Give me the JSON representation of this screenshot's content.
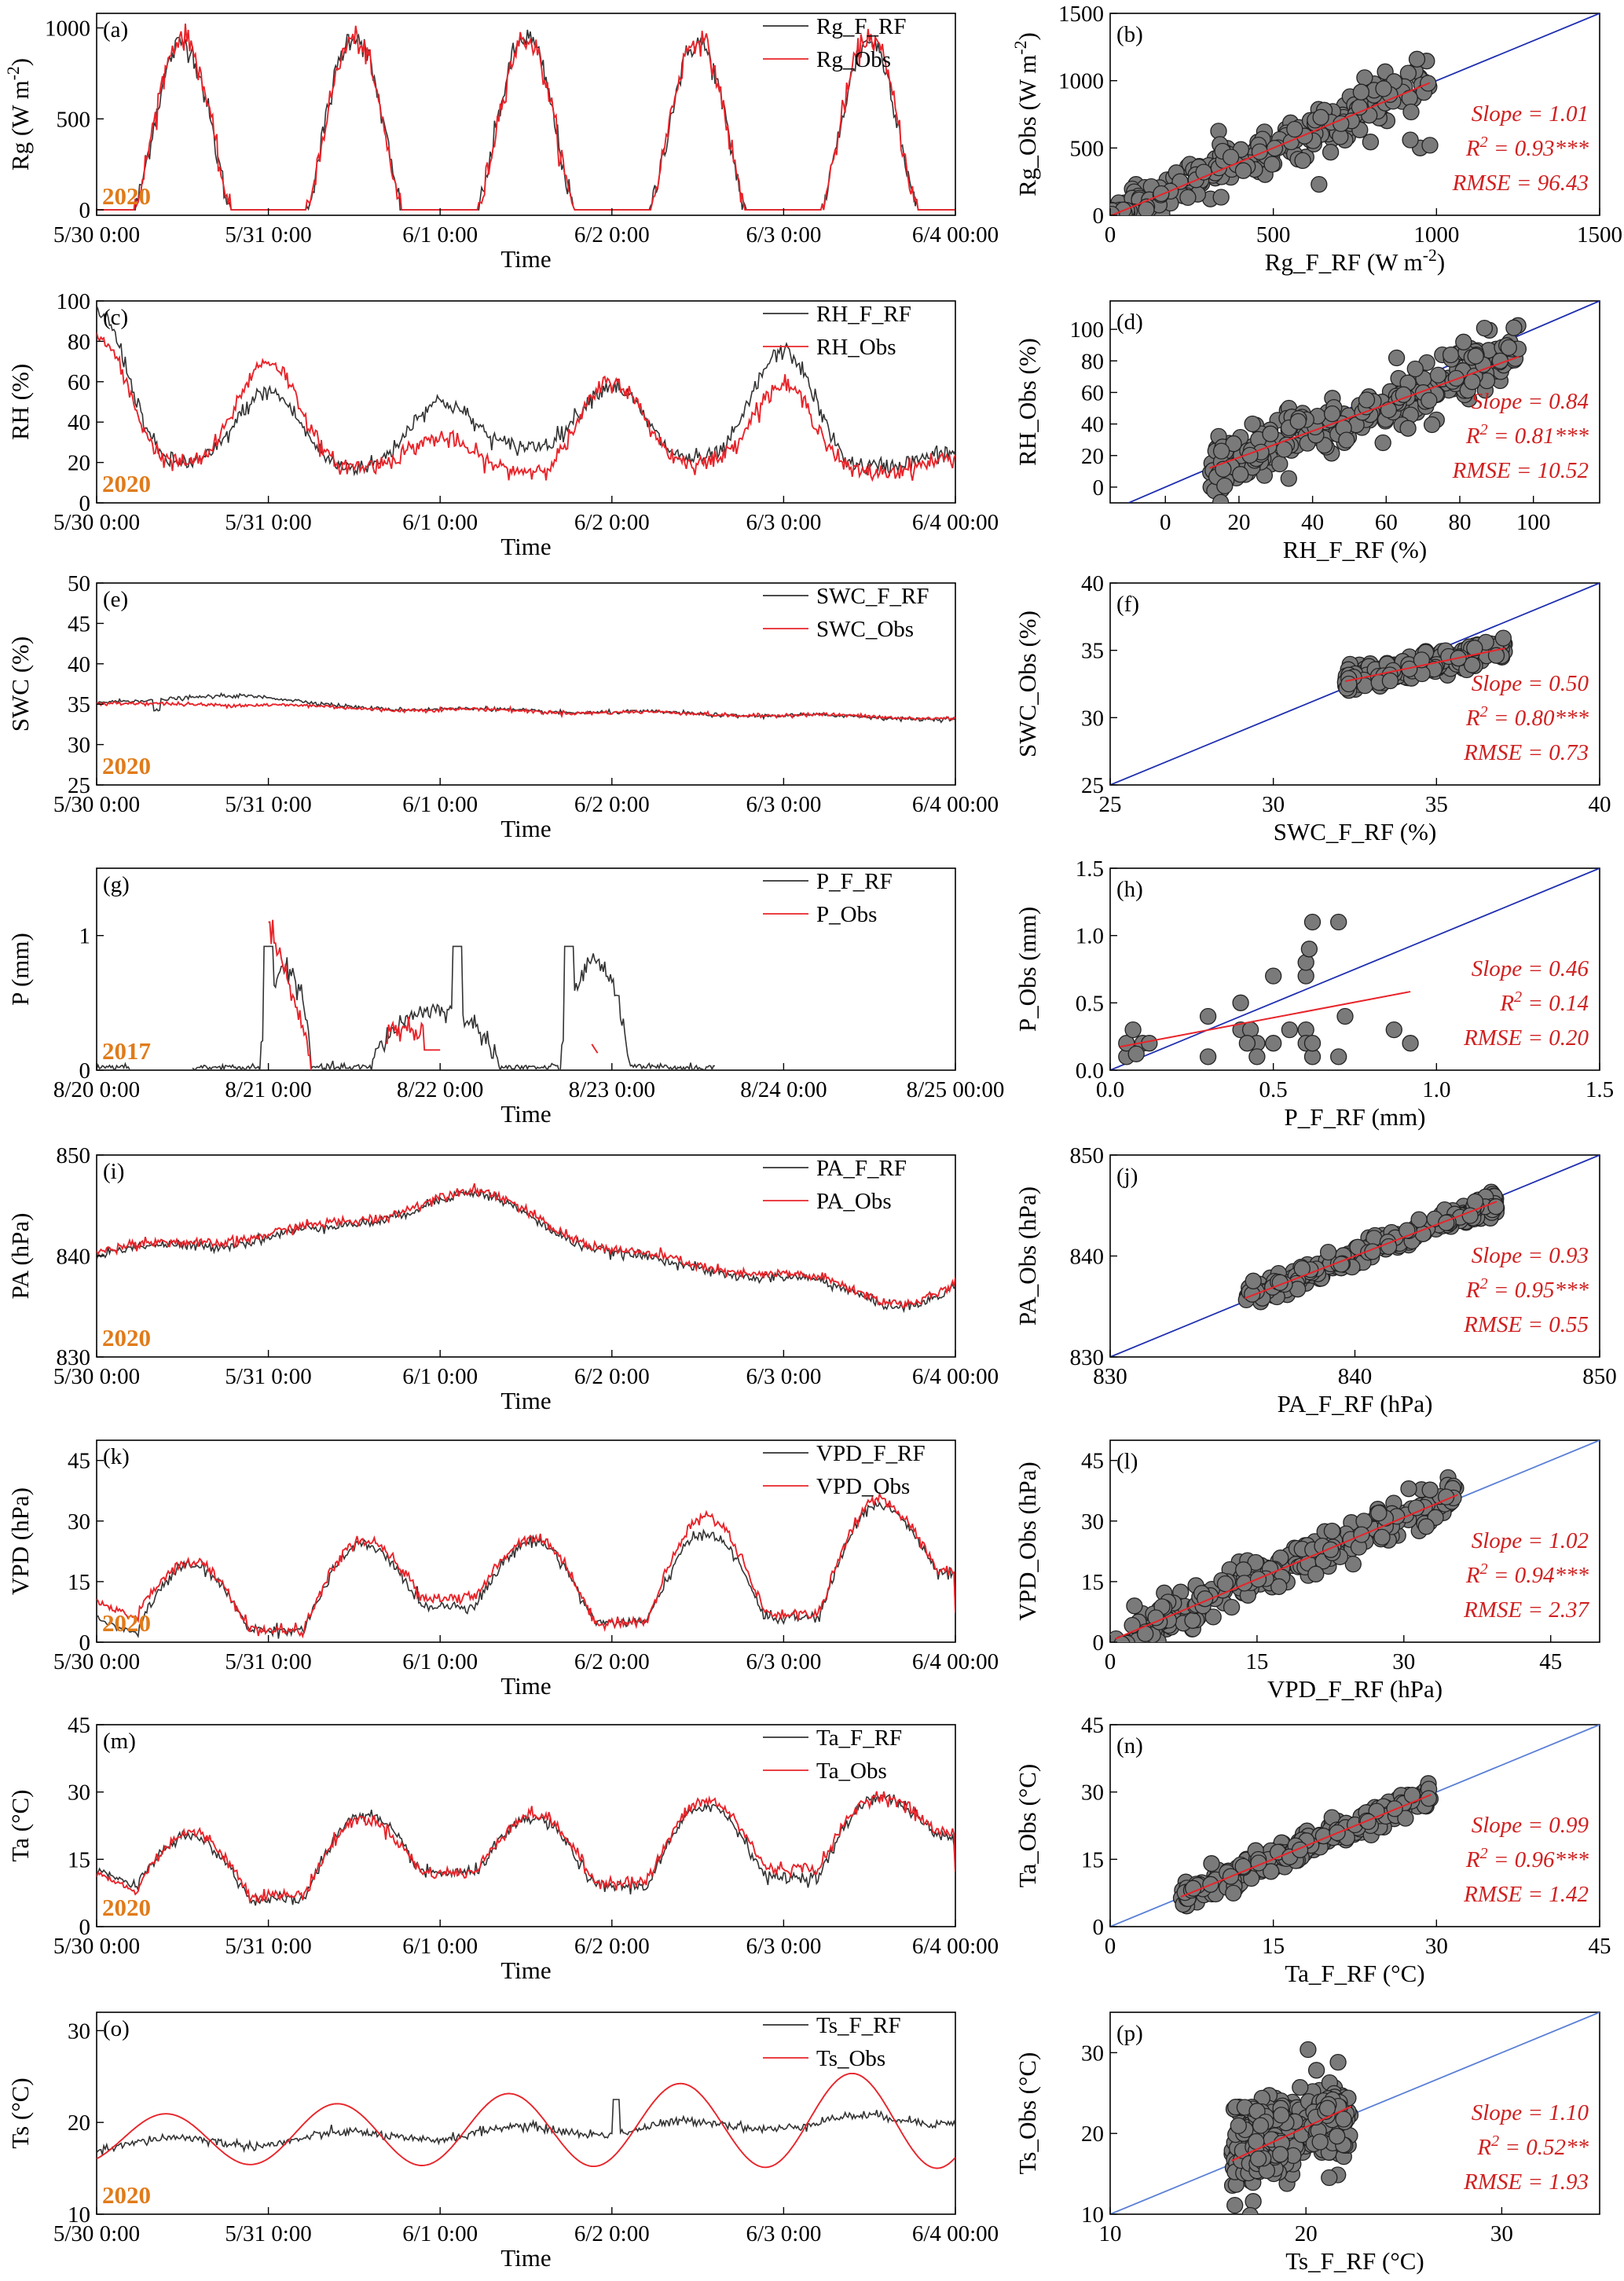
{
  "colors": {
    "sim": "#333333",
    "obs": "#e8242a",
    "one_to_one": "#1f2fb0",
    "one_to_one_light": "#5a7fd6",
    "fit": "#e8242a",
    "marker_fill": "#7a7a7a",
    "marker_edge": "#222222",
    "year": "#e07b1a",
    "stats": "#d02020"
  },
  "chart_data": [
    {
      "type": "line",
      "panel": "(a)",
      "year": "2020",
      "ylabel": "Rg (W m-2)",
      "ylabel_main": "Rg (W m",
      "ylabel_sup": "-2",
      "ylabel_tail": ")",
      "xlabel": "Time",
      "ylim": [
        -30,
        1080
      ],
      "yticks": [
        0,
        500,
        1000
      ],
      "xticks": [
        "5/30 0:00",
        "5/31 0:00",
        "6/1 0:00",
        "6/2 0:00",
        "6/3 0:00",
        "6/4 00:00"
      ],
      "series": [
        {
          "name": "Rg_F_RF",
          "pattern": "solar",
          "amp": [
            920,
            960,
            950,
            920,
            930
          ],
          "bias": 0
        },
        {
          "name": "Rg_Obs",
          "pattern": "solar",
          "amp": [
            950,
            940,
            940,
            940,
            950
          ],
          "bias": 0
        }
      ]
    },
    {
      "type": "scatter",
      "panel": "(b)",
      "xlabel": "Rg_F_RF (W m-2)",
      "xlabel_main": "Rg_F_RF (W m",
      "xlabel_sup": "-2",
      "xlabel_tail": ")",
      "ylabel": "Rg_Obs (W m-2)",
      "ylabel_main": "Rg_Obs (W m",
      "ylabel_sup": "-2",
      "ylabel_tail": ")",
      "xlim": [
        0,
        1500
      ],
      "ylim": [
        0,
        1500
      ],
      "xticks": [
        0,
        500,
        1000,
        1500
      ],
      "yticks": [
        0,
        500,
        1000,
        1500
      ],
      "slope_label": "Slope = 1.01",
      "r2_label": "R",
      "r2_value": " = 0.93***",
      "rmse_label": "RMSE = 96.43",
      "slope": 1.01,
      "intercept": -5,
      "cloud": {
        "xmin": 0,
        "xmax": 980,
        "spread": 90
      }
    },
    {
      "type": "line",
      "panel": "(c)",
      "year": "2020",
      "ylabel": "RH (%)",
      "xlabel": "Time",
      "ylim": [
        0,
        100
      ],
      "yticks": [
        0,
        20,
        40,
        60,
        80,
        100
      ],
      "xticks": [
        "5/30 0:00",
        "5/31 0:00",
        "6/1 0:00",
        "6/2 0:00",
        "6/3 0:00",
        "6/4 00:00"
      ],
      "series": [
        {
          "name": "RH_F_RF",
          "pattern": "humid",
          "peaks": [
            95,
            55,
            50,
            58,
            75,
            25
          ],
          "troughs": [
            20,
            18,
            28,
            22,
            18,
            12
          ]
        },
        {
          "name": "RH_Obs",
          "pattern": "humid",
          "peaks": [
            82,
            70,
            32,
            60,
            58,
            22
          ],
          "troughs": [
            20,
            18,
            16,
            20,
            15,
            10
          ]
        }
      ]
    },
    {
      "type": "scatter",
      "panel": "(d)",
      "xlabel": "RH_F_RF (%)",
      "ylabel": "RH_Obs (%)",
      "xlim": [
        -15,
        118
      ],
      "ylim": [
        -10,
        118
      ],
      "xticks": [
        0,
        20,
        40,
        60,
        80,
        100
      ],
      "yticks": [
        0,
        20,
        40,
        60,
        80,
        100
      ],
      "slope_label": "Slope = 0.84",
      "r2_label": "R",
      "r2_value": " = 0.81***",
      "rmse_label": "RMSE = 10.52",
      "slope": 0.84,
      "intercept": 2,
      "cloud": {
        "xmin": 12,
        "xmax": 96,
        "spread": 10
      }
    },
    {
      "type": "line",
      "panel": "(e)",
      "year": "2020",
      "ylabel": "SWC (%)",
      "xlabel": "Time",
      "ylim": [
        25,
        50
      ],
      "yticks": [
        25,
        30,
        35,
        40,
        45,
        50
      ],
      "xticks": [
        "5/30 0:00",
        "5/31 0:00",
        "6/1 0:00",
        "6/2 0:00",
        "6/3 0:00",
        "6/4 00:00"
      ],
      "series": [
        {
          "name": "SWC_F_RF",
          "pattern": "flat",
          "start": 35.2,
          "end": 33.2,
          "bump": 1.3
        },
        {
          "name": "SWC_Obs",
          "pattern": "flat",
          "start": 35.0,
          "end": 33.3,
          "bump": 0.3
        }
      ]
    },
    {
      "type": "scatter",
      "panel": "(f)",
      "xlabel": "SWC_F_RF (%)",
      "ylabel": "SWC_Obs (%)",
      "xlim": [
        25,
        40
      ],
      "ylim": [
        25,
        40
      ],
      "xticks": [
        25,
        30,
        35,
        40
      ],
      "yticks": [
        25,
        30,
        35,
        40
      ],
      "slope_label": "Slope = 0.50",
      "r2_label": "R",
      "r2_value": " = 0.80***",
      "rmse_label": "RMSE = 0.73",
      "slope": 0.5,
      "intercept": 16.6,
      "cloud": {
        "xmin": 32.2,
        "xmax": 37.1,
        "spread": 0.4
      }
    },
    {
      "type": "line",
      "panel": "(g)",
      "year": "2017",
      "ylabel": "P (mm)",
      "xlabel": "Time",
      "ylim": [
        0,
        1.5
      ],
      "yticks": [
        0,
        1
      ],
      "xticks": [
        "8/20 0:00",
        "8/21 0:00",
        "8/22 0:00",
        "8/23 0:00",
        "8/24 0:00",
        "8/25 00:00"
      ],
      "series": [
        {
          "name": "P_F_RF",
          "pattern": "rain_sim"
        },
        {
          "name": "P_Obs",
          "pattern": "rain_obs"
        }
      ]
    },
    {
      "type": "scatter",
      "panel": "(h)",
      "xlabel": "P_F_RF (mm)",
      "ylabel": "P_Obs (mm)",
      "xlim": [
        0,
        1.5
      ],
      "ylim": [
        0,
        1.5
      ],
      "xticks": [
        0.0,
        0.5,
        1.0,
        1.5
      ],
      "yticks": [
        0.0,
        0.5,
        1.0,
        1.5
      ],
      "slope_label": "Slope = 0.46",
      "r2_label": "R",
      "r2_value": " = 0.14",
      "rmse_label": "RMSE = 0.20",
      "slope": 0.46,
      "intercept": 0.16,
      "fit_range": [
        0.03,
        0.92
      ],
      "points": [
        [
          0.05,
          0.1
        ],
        [
          0.05,
          0.2
        ],
        [
          0.07,
          0.3
        ],
        [
          0.1,
          0.2
        ],
        [
          0.12,
          0.2
        ],
        [
          0.08,
          0.12
        ],
        [
          0.3,
          0.4
        ],
        [
          0.3,
          0.1
        ],
        [
          0.4,
          0.5
        ],
        [
          0.4,
          0.3
        ],
        [
          0.43,
          0.3
        ],
        [
          0.45,
          0.2
        ],
        [
          0.5,
          0.2
        ],
        [
          0.45,
          0.1
        ],
        [
          0.42,
          0.2
        ],
        [
          0.55,
          0.3
        ],
        [
          0.6,
          0.3
        ],
        [
          0.6,
          0.2
        ],
        [
          0.62,
          0.1
        ],
        [
          0.6,
          0.7
        ],
        [
          0.6,
          0.8
        ],
        [
          0.61,
          0.9
        ],
        [
          0.62,
          1.1
        ],
        [
          0.7,
          1.1
        ],
        [
          0.72,
          0.4
        ],
        [
          0.7,
          0.1
        ],
        [
          0.87,
          0.3
        ],
        [
          0.92,
          0.2
        ],
        [
          0.62,
          0.2
        ],
        [
          0.5,
          0.7
        ]
      ]
    },
    {
      "type": "line",
      "panel": "(i)",
      "year": "2020",
      "ylabel": "PA (hPa)",
      "xlabel": "Time",
      "ylim": [
        830,
        850
      ],
      "yticks": [
        830,
        840,
        850
      ],
      "xticks": [
        "5/30 0:00",
        "5/31 0:00",
        "6/1 0:00",
        "6/2 0:00",
        "6/3 0:00",
        "6/4 00:00"
      ],
      "series": [
        {
          "name": "PA_F_RF",
          "pattern": "pressure",
          "offset": 0
        },
        {
          "name": "PA_Obs",
          "pattern": "pressure",
          "offset": 0.3
        }
      ]
    },
    {
      "type": "scatter",
      "panel": "(j)",
      "xlabel": "PA_F_RF (hPa)",
      "ylabel": "PA_Obs (hPa)",
      "xlim": [
        830,
        850
      ],
      "ylim": [
        830,
        850
      ],
      "xticks": [
        830,
        840,
        850
      ],
      "yticks": [
        830,
        840,
        850
      ],
      "slope_label": "Slope = 0.93",
      "r2_label": "R",
      "r2_value": " = 0.95***",
      "rmse_label": "RMSE = 0.55",
      "slope": 0.93,
      "intercept": 58.8,
      "cloud": {
        "xmin": 835.5,
        "xmax": 845.8,
        "spread": 0.5
      }
    },
    {
      "type": "line",
      "panel": "(k)",
      "year": "2020",
      "ylabel": "VPD (hPa)",
      "xlabel": "Time",
      "ylim": [
        0,
        50
      ],
      "yticks": [
        0,
        15,
        30,
        45
      ],
      "xticks": [
        "5/30 0:00",
        "5/31 0:00",
        "6/1 0:00",
        "6/2 0:00",
        "6/3 0:00",
        "6/4 00:00"
      ],
      "series": [
        {
          "name": "VPD_F_RF",
          "pattern": "diurnal",
          "maxs": [
            19,
            24,
            25,
            27,
            34
          ],
          "mins": [
            1,
            3,
            9,
            5,
            6,
            17
          ]
        },
        {
          "name": "VPD_Obs",
          "pattern": "diurnal",
          "maxs": [
            20,
            25,
            26,
            31,
            35
          ],
          "mins": [
            5,
            3,
            11,
            5,
            7,
            18
          ]
        }
      ]
    },
    {
      "type": "scatter",
      "panel": "(l)",
      "xlabel": "VPD_F_RF (hPa)",
      "ylabel": "VPD_Obs (hPa)",
      "xlim": [
        0,
        50
      ],
      "ylim": [
        0,
        50
      ],
      "xticks": [
        0,
        15,
        30,
        45
      ],
      "yticks": [
        0,
        15,
        30,
        45
      ],
      "slope_label": "Slope = 1.02",
      "r2_label": "R",
      "r2_value": " = 0.94***",
      "rmse_label": "RMSE = 2.37",
      "slope": 1.02,
      "intercept": 0.3,
      "cloud": {
        "xmin": 0.5,
        "xmax": 35.5,
        "spread": 2.6
      }
    },
    {
      "type": "line",
      "panel": "(m)",
      "year": "2020",
      "ylabel": "Ta (°C)",
      "xlabel": "Time",
      "ylim": [
        0,
        45
      ],
      "yticks": [
        0,
        15,
        30,
        45
      ],
      "xticks": [
        "5/30 0:00",
        "5/31 0:00",
        "6/1 0:00",
        "6/2 0:00",
        "6/3 0:00",
        "6/4 00:00"
      ],
      "series": [
        {
          "name": "Ta_F_RF",
          "pattern": "diurnal",
          "maxs": [
            20,
            25,
            24,
            27,
            29
          ],
          "mins": [
            8,
            6,
            12,
            9,
            11,
            20
          ]
        },
        {
          "name": "Ta_Obs",
          "pattern": "diurnal",
          "maxs": [
            21,
            24,
            25,
            28,
            29
          ],
          "mins": [
            7,
            7,
            12,
            10,
            13,
            21
          ]
        }
      ]
    },
    {
      "type": "scatter",
      "panel": "(n)",
      "xlabel": "Ta_F_RF (°C)",
      "ylabel": "Ta_Obs (°C)",
      "xlim": [
        0,
        45
      ],
      "ylim": [
        0,
        45
      ],
      "xticks": [
        0,
        15,
        30,
        45
      ],
      "yticks": [
        0,
        15,
        30,
        45
      ],
      "slope_label": "Slope = 0.99",
      "r2_label": "R",
      "r2_value": " = 0.96***",
      "rmse_label": "RMSE = 1.42",
      "slope": 0.99,
      "intercept": 0.2,
      "cloud": {
        "xmin": 6.5,
        "xmax": 29.5,
        "spread": 1.4
      }
    },
    {
      "type": "line",
      "panel": "(o)",
      "year": "2020",
      "ylabel": "Ts (°C)",
      "xlabel": "Time",
      "ylim": [
        10,
        32
      ],
      "yticks": [
        10,
        20,
        30
      ],
      "xticks": [
        "5/30 0:00",
        "5/31 0:00",
        "6/1 0:00",
        "6/2 0:00",
        "6/3 0:00",
        "6/4 00:00"
      ],
      "series": [
        {
          "name": "Ts_F_RF",
          "pattern": "soil_sim"
        },
        {
          "name": "Ts_Obs",
          "pattern": "soil_obs"
        }
      ]
    },
    {
      "type": "scatter",
      "panel": "(p)",
      "xlabel": "Ts_F_RF (°C)",
      "ylabel": "Ts_Obs (°C)",
      "xlim": [
        10,
        35
      ],
      "ylim": [
        10,
        35
      ],
      "xticks": [
        10,
        20,
        30
      ],
      "yticks": [
        10,
        20,
        30
      ],
      "slope_label": "Slope = 1.10",
      "r2_label": "R",
      "r2_value": " = 0.52**",
      "rmse_label": "RMSE = 1.93",
      "slope": 1.1,
      "intercept": -1.2,
      "fit_range": [
        16.2,
        22.3
      ],
      "cloud": {
        "xmin": 16.2,
        "xmax": 22.3,
        "spread": 2.5
      }
    }
  ]
}
